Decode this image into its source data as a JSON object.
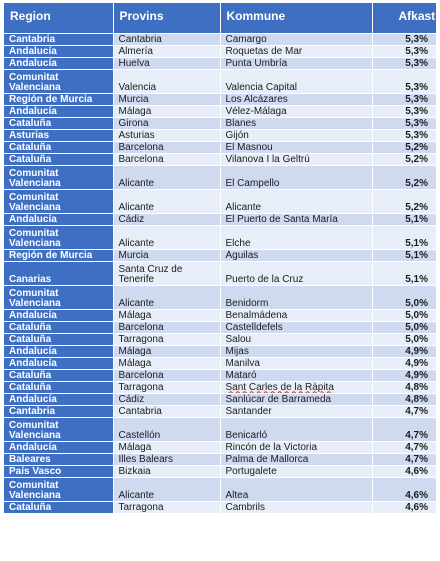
{
  "table": {
    "headers": [
      "Region",
      "Provins",
      "Kommune",
      "Afkast"
    ],
    "rows": [
      {
        "region": "Cantabria",
        "provins": "Cantabria",
        "kommune": "Camargo",
        "afkast": "5,3%"
      },
      {
        "region": "Andalucía",
        "provins": "Almería",
        "kommune": "Roquetas de Mar",
        "afkast": "5,3%"
      },
      {
        "region": "Andalucía",
        "provins": "Huelva",
        "kommune": "Punta Umbría",
        "afkast": "5,3%"
      },
      {
        "region": "Comunitat Valenciana",
        "provins": "Valencia",
        "kommune": " Valencia Capital",
        "afkast": "5,3%"
      },
      {
        "region": "Región de Murcia",
        "provins": "Murcia",
        "kommune": "Los Alcázares",
        "afkast": "5,3%"
      },
      {
        "region": "Andalucía",
        "provins": "Málaga",
        "kommune": "Vélez-Málaga",
        "afkast": "5,3%"
      },
      {
        "region": "Cataluña",
        "provins": "Girona",
        "kommune": "Blanes",
        "afkast": "5,3%"
      },
      {
        "region": "Asturias",
        "provins": "Asturias",
        "kommune": "Gijón",
        "afkast": "5,3%"
      },
      {
        "region": "Cataluña",
        "provins": "Barcelona",
        "kommune": "El Masnou",
        "afkast": "5,2%"
      },
      {
        "region": "Cataluña",
        "provins": "Barcelona",
        "kommune": "Vilanova I la Geltrú",
        "afkast": "5,2%"
      },
      {
        "region": "Comunitat Valenciana",
        "provins": "Alicante",
        "kommune": "El Campello",
        "afkast": "5,2%"
      },
      {
        "region": "Comunitat Valenciana",
        "provins": "Alicante",
        "kommune": "Alicante",
        "afkast": "5,2%"
      },
      {
        "region": "Andalucía",
        "provins": "Cádiz",
        "kommune": "El Puerto de Santa María",
        "afkast": "5,1%"
      },
      {
        "region": "Comunitat Valenciana",
        "provins": "Alicante",
        "kommune": "Elche",
        "afkast": "5,1%"
      },
      {
        "region": "Región de Murcia",
        "provins": "Murcia",
        "kommune": "Águilas",
        "afkast": "5,1%"
      },
      {
        "region": "Canarias",
        "provins": "Santa Cruz de Tenerife",
        "kommune": "Puerto de la Cruz",
        "afkast": "5,1%"
      },
      {
        "region": "Comunitat Valenciana",
        "provins": "Alicante",
        "kommune": "Benidorm",
        "afkast": "5,0%"
      },
      {
        "region": "Andalucía",
        "provins": "Málaga",
        "kommune": "Benalmádena",
        "afkast": "5,0%"
      },
      {
        "region": "Cataluña",
        "provins": "Barcelona",
        "kommune": "Castelldefels",
        "afkast": "5,0%"
      },
      {
        "region": "Cataluña",
        "provins": "Tarragona",
        "kommune": "Salou",
        "afkast": "5,0%"
      },
      {
        "region": "Andalucía",
        "provins": "Málaga",
        "kommune": "Mijas",
        "afkast": "4,9%"
      },
      {
        "region": "Andalucía",
        "provins": "Málaga",
        "kommune": "Manilva",
        "afkast": "4,9%"
      },
      {
        "region": "Cataluña",
        "provins": "Barcelona",
        "kommune": "Mataró",
        "afkast": "4,9%"
      },
      {
        "region": "Cataluña",
        "provins": "Tarragona",
        "kommune": "Sant Carles de la Ràpita",
        "afkast": "4,8%"
      },
      {
        "region": "Andalucía",
        "provins": "Cádiz",
        "kommune": "Sanlúcar de Barrameda",
        "afkast": "4,8%"
      },
      {
        "region": "Cantabria",
        "provins": "Cantabria",
        "kommune": "Santander",
        "afkast": "4,7%"
      },
      {
        "region": "Comunitat Valenciana",
        "provins": "Castellón",
        "kommune": "Benicarló",
        "afkast": "4,7%"
      },
      {
        "region": "Andalucía",
        "provins": "Málaga",
        "kommune": "Rincón de la Victoria",
        "afkast": "4,7%"
      },
      {
        "region": "Baleares",
        "provins": "Illes Balears",
        "kommune": "Palma de Mallorca",
        "afkast": "4,7%"
      },
      {
        "region": "País Vasco",
        "provins": "Bizkaia",
        "kommune": "Portugalete",
        "afkast": "4,6%"
      },
      {
        "region": "Comunitat Valenciana",
        "provins": "Alicante",
        "kommune": "Altea",
        "afkast": "4,6%"
      },
      {
        "region": "Cataluña",
        "provins": "Tarragona",
        "kommune": "Cambrils",
        "afkast": "4,6%"
      }
    ]
  }
}
